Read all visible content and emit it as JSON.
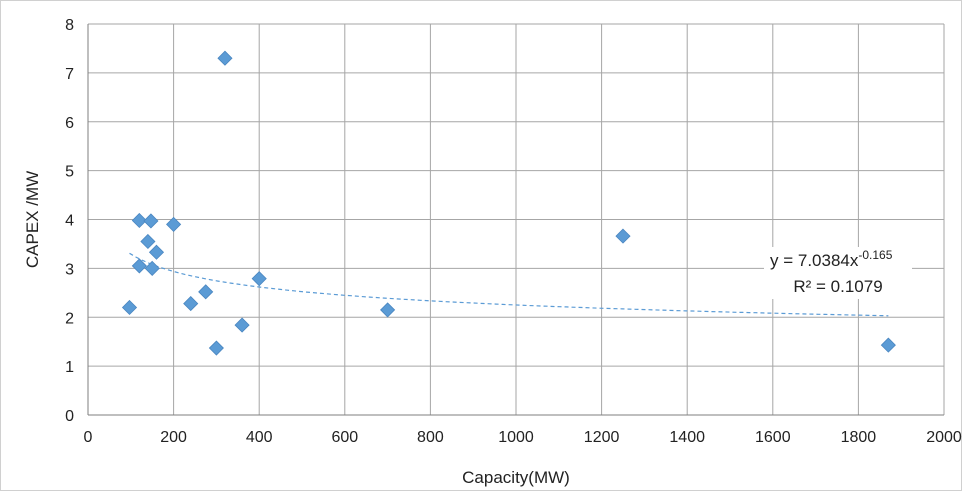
{
  "chart_data": {
    "type": "scatter",
    "title": "",
    "xlabel": "Capacity(MW)",
    "ylabel": "CAPEX /MW",
    "xlim": [
      0,
      2000
    ],
    "ylim": [
      0,
      8
    ],
    "x_ticks": [
      0,
      200,
      400,
      600,
      800,
      1000,
      1200,
      1400,
      1600,
      1800,
      2000
    ],
    "y_ticks": [
      0,
      1,
      2,
      3,
      4,
      5,
      6,
      7,
      8
    ],
    "grid": true,
    "legend": "none",
    "marker": "diamond",
    "marker_color": "#5b9bd5",
    "points": [
      {
        "x": 97,
        "y": 2.2
      },
      {
        "x": 120,
        "y": 3.05
      },
      {
        "x": 120,
        "y": 3.98
      },
      {
        "x": 140,
        "y": 3.55
      },
      {
        "x": 147,
        "y": 3.97
      },
      {
        "x": 150,
        "y": 3.0
      },
      {
        "x": 160,
        "y": 3.33
      },
      {
        "x": 200,
        "y": 3.9
      },
      {
        "x": 240,
        "y": 2.28
      },
      {
        "x": 275,
        "y": 2.52
      },
      {
        "x": 300,
        "y": 1.37
      },
      {
        "x": 320,
        "y": 7.3
      },
      {
        "x": 360,
        "y": 1.84
      },
      {
        "x": 400,
        "y": 2.79
      },
      {
        "x": 700,
        "y": 2.15
      },
      {
        "x": 1250,
        "y": 3.66
      },
      {
        "x": 1870,
        "y": 1.43
      }
    ],
    "trendline": {
      "type": "power",
      "a": 7.0384,
      "b": -0.165,
      "x_range": [
        97,
        1870
      ],
      "color": "#5b9bd5",
      "dashed": true,
      "equation_base": "y = 7.0384x",
      "equation_exponent": "-0.165",
      "r_squared_text": "R² = 0.1079"
    }
  }
}
